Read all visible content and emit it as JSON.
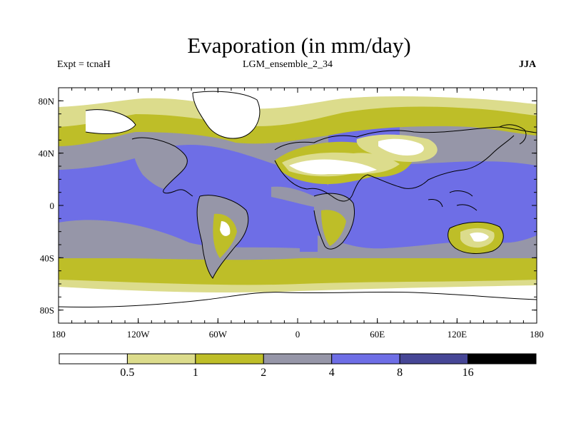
{
  "title": "Evaporation (in mm/day)",
  "experiment_label": "Expt = tcnaH",
  "run_label": "LGM_ensemble_2_34",
  "season_label": "JJA",
  "map": {
    "lon_range": [
      -180,
      180
    ],
    "lat_range": [
      -90,
      90
    ],
    "lat_ticks": [
      {
        "value": 80,
        "label": "80N"
      },
      {
        "value": 40,
        "label": "40N"
      },
      {
        "value": 0,
        "label": "0"
      },
      {
        "value": -40,
        "label": "40S"
      },
      {
        "value": -80,
        "label": "80S"
      }
    ],
    "lon_ticks": [
      {
        "value": -180,
        "label": "180"
      },
      {
        "value": -120,
        "label": "120W"
      },
      {
        "value": -60,
        "label": "60W"
      },
      {
        "value": 0,
        "label": "0"
      },
      {
        "value": 60,
        "label": "60E"
      },
      {
        "value": 120,
        "label": "120E"
      },
      {
        "value": 180,
        "label": "180"
      }
    ]
  },
  "colorbar": {
    "levels": [
      "0.5",
      "1",
      "2",
      "4",
      "8",
      "16"
    ],
    "colors": [
      "#ffffff",
      "#dcdc8c",
      "#bebe28",
      "#9696a8",
      "#6e6ee6",
      "#464696",
      "#000000"
    ]
  }
}
